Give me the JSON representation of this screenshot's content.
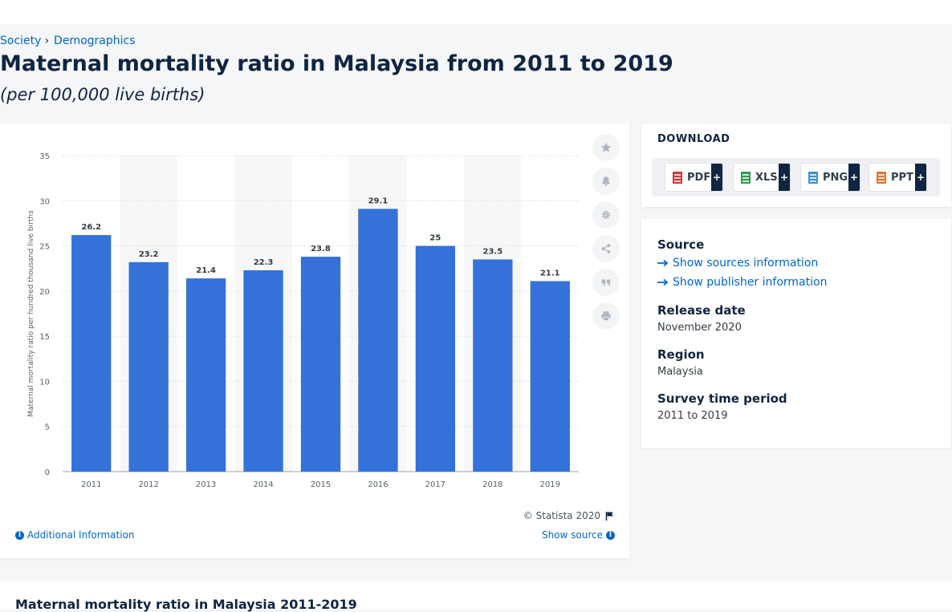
{
  "breadcrumb": {
    "level1": "Society",
    "separator": "›",
    "level2": "Demographics"
  },
  "page": {
    "title": "Maternal mortality ratio in Malaysia from 2011 to 2019",
    "subtitle": "(per 100,000 live births)"
  },
  "chart_footer": {
    "copyright": "© Statista 2020",
    "additional_info": "Additional Information",
    "show_source": "Show source"
  },
  "toolbar": {
    "icons": [
      "star-icon",
      "bell-icon",
      "gear-icon",
      "share-icon",
      "quote-icon",
      "print-icon"
    ]
  },
  "download": {
    "title": "DOWNLOAD",
    "buttons": [
      {
        "label": "PDF",
        "color": "#d9343a"
      },
      {
        "label": "XLS",
        "color": "#2e9e4f"
      },
      {
        "label": "PNG",
        "color": "#3d8fd1"
      },
      {
        "label": "PPT",
        "color": "#e0742b"
      }
    ],
    "plus": "+"
  },
  "info": {
    "source_label": "Source",
    "show_sources": "Show sources information",
    "show_publisher": "Show publisher information",
    "release_label": "Release date",
    "release_value": "November 2020",
    "region_label": "Region",
    "region_value": "Malaysia",
    "survey_label": "Survey time period",
    "survey_value": "2011 to 2019"
  },
  "bottom": {
    "title": "Maternal mortality ratio in Malaysia 2011-2019"
  },
  "colors": {
    "bar": "#3471d9",
    "accent": "#0066cc",
    "dark": "#0f2542",
    "band": "#f7f7f7"
  },
  "chart_data": {
    "type": "bar",
    "categories": [
      "2011",
      "2012",
      "2013",
      "2014",
      "2015",
      "2016",
      "2017",
      "2018",
      "2019"
    ],
    "values": [
      26.2,
      23.2,
      21.4,
      22.3,
      23.8,
      29.1,
      25,
      23.5,
      21.1
    ],
    "value_labels": [
      "26.2",
      "23.2",
      "21.4",
      "22.3",
      "23.8",
      "29.1",
      "25",
      "23.5",
      "21.1"
    ],
    "ylabel": "Maternal mortality ratio per hundred thousand live births",
    "ylim": [
      0,
      35
    ],
    "yticks": [
      0,
      5,
      10,
      15,
      20,
      25,
      30,
      35
    ],
    "grid": true
  }
}
